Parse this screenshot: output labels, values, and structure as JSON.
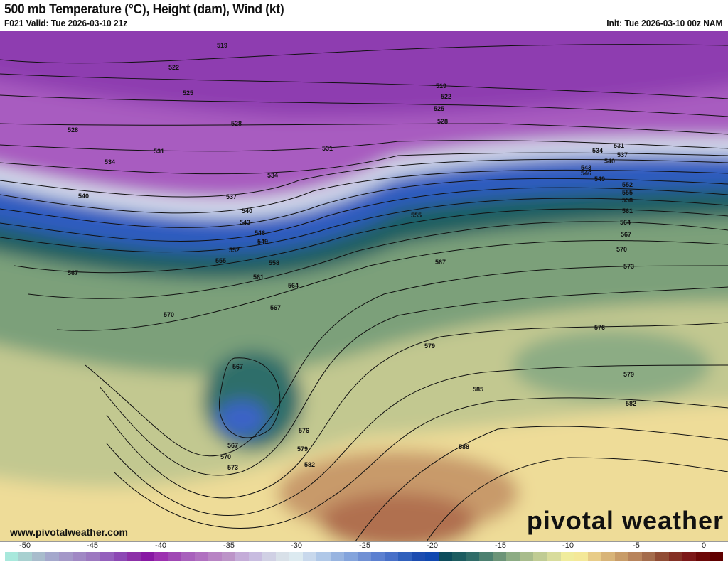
{
  "header": {
    "title": "500 mb Temperature (°C), Height (dam), Wind (kt)",
    "valid": "F021 Valid: Tue 2026-03-10 21z",
    "init": "Init: Tue 2026-03-10 00z NAM"
  },
  "footer": {
    "website": "www.pivotalweather.com",
    "brand": "pivotal weather"
  },
  "colorbar": {
    "ticks": [
      "-50",
      "-45",
      "-40",
      "-35",
      "-30",
      "-25",
      "-20",
      "-15",
      "-10",
      "-5",
      "0"
    ],
    "colors": [
      "#a8e8dc",
      "#a8d0d0",
      "#a8bccc",
      "#a4a8cc",
      "#a498c8",
      "#a088c4",
      "#9c78c0",
      "#9460bc",
      "#8c48b4",
      "#8c30a8",
      "#8818a4",
      "#9c30b0",
      "#a048b4",
      "#a860bc",
      "#b070c0",
      "#b884c4",
      "#bc94c8",
      "#c4acd8",
      "#c8bce0",
      "#d0d0e4",
      "#d8e0e8",
      "#dceaf0",
      "#c8d8ec",
      "#b0c8e8",
      "#98b4e0",
      "#84a4dc",
      "#7090d4",
      "#5c80d0",
      "#4870c8",
      "#3060bc",
      "#1c4cb0",
      "#1048b0",
      "#0c4c5c",
      "#1c5c60",
      "#306c68",
      "#4c8070",
      "#6c9478",
      "#8cac84",
      "#a8bc8c",
      "#c0cc94",
      "#d8dc9c",
      "#f0ec9c",
      "#f4e898",
      "#e8cc88",
      "#d8b478",
      "#c89c68",
      "#b8845c",
      "#a46c4c",
      "#904c34",
      "#843024",
      "#7c1818",
      "#6c0808",
      "#600000"
    ]
  },
  "contour_labels": [
    "519",
    "522",
    "525",
    "528",
    "531",
    "534",
    "537",
    "540",
    "543",
    "546",
    "549",
    "552",
    "555",
    "558",
    "561",
    "564",
    "567",
    "570",
    "573",
    "576",
    "579",
    "582",
    "585",
    "588"
  ]
}
